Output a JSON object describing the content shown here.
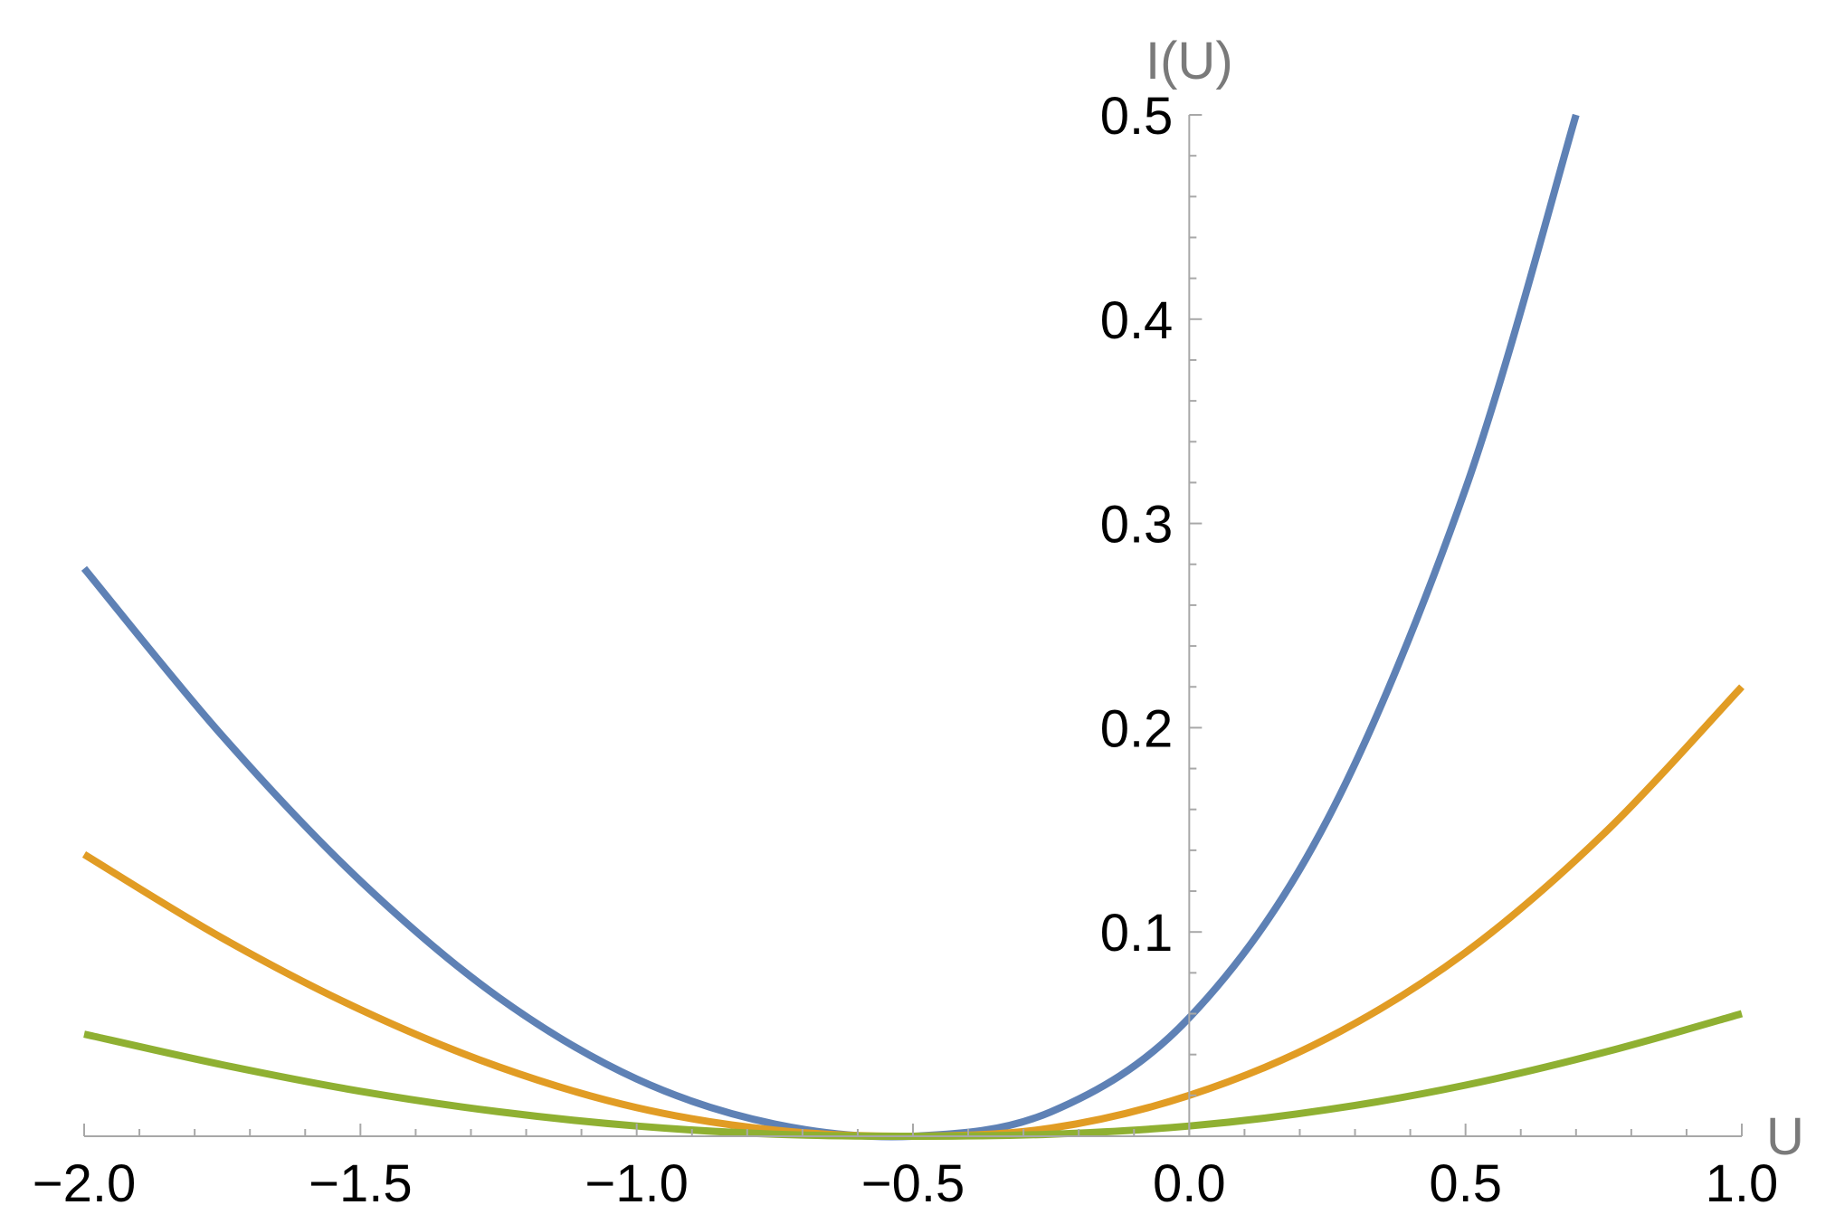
{
  "chart_data": {
    "type": "line",
    "title": "",
    "xlabel": "U",
    "ylabel": "I(U)",
    "xlim": [
      -2.0,
      1.0
    ],
    "ylim": [
      0,
      0.5
    ],
    "grid": false,
    "legend": "none",
    "x_ticks": [
      {
        "value": -2.0,
        "label": "−2.0"
      },
      {
        "value": -1.5,
        "label": "−1.5"
      },
      {
        "value": -1.0,
        "label": "−1.0"
      },
      {
        "value": -0.5,
        "label": "−0.5"
      },
      {
        "value": 0.0,
        "label": "0.0"
      },
      {
        "value": 0.5,
        "label": "0.5"
      },
      {
        "value": 1.0,
        "label": "1.0"
      }
    ],
    "y_ticks": [
      {
        "value": 0.1,
        "label": "0.1"
      },
      {
        "value": 0.2,
        "label": "0.2"
      },
      {
        "value": 0.3,
        "label": "0.3"
      },
      {
        "value": 0.4,
        "label": "0.4"
      },
      {
        "value": 0.5,
        "label": "0.5"
      }
    ],
    "series": [
      {
        "color": "#5e81b5",
        "x": [
          -2.0,
          -1.75,
          -1.5,
          -1.25,
          -1.0,
          -0.75,
          -0.5,
          -0.25,
          0.0,
          0.25,
          0.5,
          0.7
        ],
        "y": [
          0.278,
          0.196,
          0.125,
          0.068,
          0.028,
          0.006,
          0.0,
          0.012,
          0.058,
          0.155,
          0.317,
          0.5
        ]
      },
      {
        "color": "#e19c24",
        "x": [
          -2.0,
          -1.75,
          -1.5,
          -1.25,
          -1.0,
          -0.75,
          -0.5,
          -0.25,
          0.0,
          0.25,
          0.5,
          0.75,
          1.0
        ],
        "y": [
          0.138,
          0.097,
          0.062,
          0.034,
          0.014,
          0.003,
          0.0,
          0.004,
          0.02,
          0.048,
          0.09,
          0.148,
          0.22
        ]
      },
      {
        "color": "#8fb032",
        "x": [
          -2.0,
          -1.75,
          -1.5,
          -1.25,
          -1.0,
          -0.75,
          -0.5,
          -0.25,
          0.0,
          0.25,
          0.5,
          0.75,
          1.0
        ],
        "y": [
          0.05,
          0.035,
          0.022,
          0.012,
          0.005,
          0.001,
          0.0,
          0.001,
          0.005,
          0.013,
          0.025,
          0.041,
          0.06
        ]
      }
    ]
  }
}
